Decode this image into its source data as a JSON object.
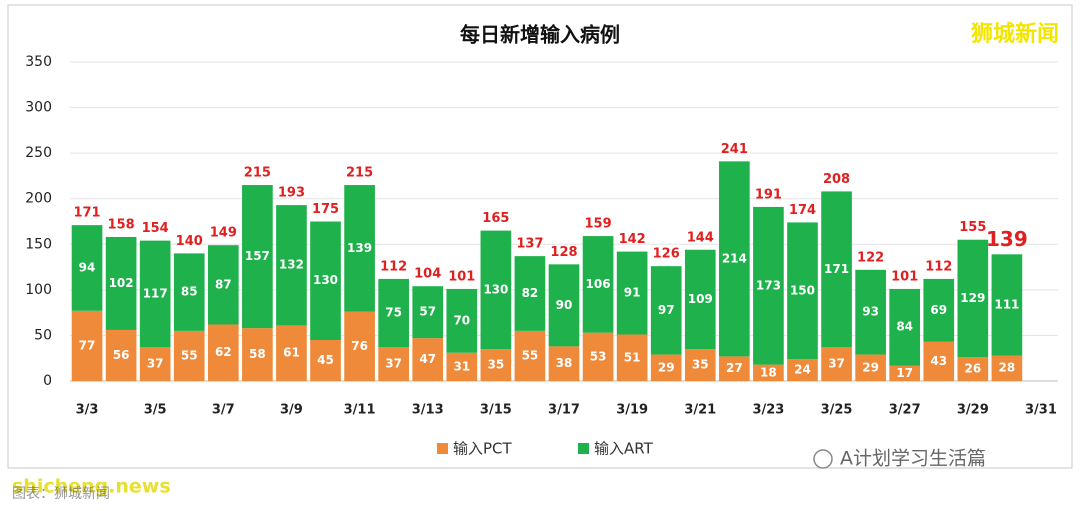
{
  "chart_data": {
    "type": "bar",
    "stacked": true,
    "title": "每日新增输入病例",
    "categories": [
      "3/3",
      null,
      "3/5",
      null,
      "3/7",
      null,
      "3/9",
      null,
      "3/11",
      null,
      "3/13",
      null,
      "3/15",
      null,
      "3/17",
      null,
      "3/19",
      null,
      "3/21",
      null,
      "3/23",
      null,
      "3/25",
      null,
      "3/27",
      null,
      "3/29",
      null,
      "3/31"
    ],
    "series": [
      {
        "name": "输入PCT",
        "color": "#ef8a3a",
        "values": [
          77,
          56,
          37,
          55,
          62,
          58,
          61,
          45,
          76,
          37,
          47,
          31,
          35,
          55,
          38,
          53,
          51,
          29,
          35,
          27,
          18,
          24,
          37,
          29,
          17,
          43,
          26,
          28,
          null
        ]
      },
      {
        "name": "输入ART",
        "color": "#1fb14b",
        "values": [
          94,
          102,
          117,
          85,
          87,
          157,
          132,
          130,
          139,
          75,
          57,
          70,
          130,
          82,
          90,
          106,
          91,
          97,
          109,
          214,
          173,
          150,
          171,
          93,
          84,
          69,
          129,
          111,
          null
        ]
      }
    ],
    "totals": [
      171,
      158,
      154,
      140,
      149,
      215,
      193,
      175,
      215,
      112,
      104,
      101,
      165,
      137,
      128,
      159,
      142,
      126,
      144,
      241,
      191,
      174,
      208,
      122,
      101,
      112,
      155,
      139,
      null
    ],
    "ylim": [
      0,
      350
    ],
    "yticks": [
      0,
      50,
      100,
      150,
      200,
      250,
      300,
      350
    ],
    "grid": true,
    "legend": "bottom"
  },
  "watermark": "狮城新闻",
  "footer": {
    "account": "A计划学习生活篇",
    "site": "shicheng.news",
    "credit": "图表：狮城新闻"
  }
}
